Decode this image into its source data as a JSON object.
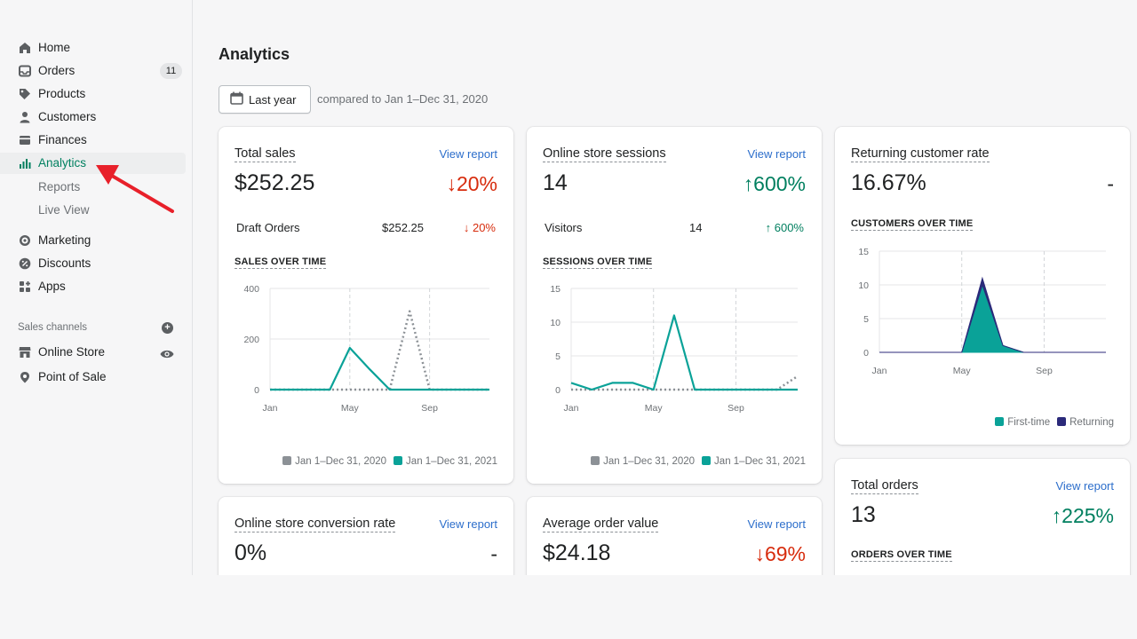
{
  "colors": {
    "accent": "#008060",
    "link": "#2c6ecb",
    "down": "#d72c0d",
    "up": "#007f5f",
    "teal": "#0aa298",
    "gray": "#8c9196",
    "navy": "#2b2a7a"
  },
  "sidebar": {
    "items": [
      {
        "label": "Home",
        "icon": "home-icon"
      },
      {
        "label": "Orders",
        "icon": "inbox-icon",
        "badge": "11"
      },
      {
        "label": "Products",
        "icon": "tag-icon"
      },
      {
        "label": "Customers",
        "icon": "person-icon"
      },
      {
        "label": "Finances",
        "icon": "wallet-icon"
      },
      {
        "label": "Analytics",
        "icon": "bar-chart-icon",
        "active": true
      },
      {
        "label": "Reports",
        "sub": true
      },
      {
        "label": "Live View",
        "sub": true
      },
      {
        "label": "Marketing",
        "icon": "target-icon"
      },
      {
        "label": "Discounts",
        "icon": "discount-icon"
      },
      {
        "label": "Apps",
        "icon": "apps-icon"
      }
    ],
    "section_label": "Sales channels",
    "channels": [
      {
        "label": "Online Store",
        "icon": "store-icon"
      },
      {
        "label": "Point of Sale",
        "icon": "pos-icon"
      }
    ]
  },
  "header": {
    "title": "Analytics",
    "date_button": "Last year",
    "compare_text": "compared to Jan 1–Dec 31, 2020"
  },
  "cards": {
    "total_sales": {
      "title": "Total sales",
      "link": "View report",
      "value": "$252.25",
      "change": "↓20%",
      "row_label": "Draft Orders",
      "row_value": "$252.25",
      "row_change": "↓ 20%",
      "chart_heading": "SALES OVER TIME",
      "legend": [
        "Jan 1–Dec 31, 2020",
        "Jan 1–Dec 31, 2021"
      ]
    },
    "sessions": {
      "title": "Online store sessions",
      "link": "View report",
      "value": "14",
      "change": "↑600%",
      "row_label": "Visitors",
      "row_value": "14",
      "row_change": "↑ 600%",
      "chart_heading": "SESSIONS OVER TIME",
      "legend": [
        "Jan 1–Dec 31, 2020",
        "Jan 1–Dec 31, 2021"
      ]
    },
    "returning": {
      "title": "Returning customer rate",
      "value": "16.67%",
      "change": "-",
      "chart_heading": "CUSTOMERS OVER TIME",
      "legend": [
        "First-time",
        "Returning"
      ]
    },
    "total_orders": {
      "title": "Total orders",
      "link": "View report",
      "value": "13",
      "change": "↑225%",
      "chart_heading": "ORDERS OVER TIME"
    },
    "conversion": {
      "title": "Online store conversion rate",
      "link": "View report",
      "value": "0%",
      "change": "-"
    },
    "aov": {
      "title": "Average order value",
      "link": "View report",
      "value": "$24.18",
      "change": "↓69%"
    }
  },
  "chart_data": [
    {
      "type": "line",
      "title": "SALES OVER TIME",
      "x_ticks": [
        "Jan",
        "May",
        "Sep"
      ],
      "y_ticks": [
        0,
        200,
        400
      ],
      "ylim": [
        0,
        400
      ],
      "x": [
        "Jan",
        "Feb",
        "Mar",
        "Apr",
        "May",
        "Jun",
        "Jul",
        "Aug",
        "Sep",
        "Oct",
        "Nov",
        "Dec"
      ],
      "series": [
        {
          "name": "Jan 1–Dec 31, 2020",
          "style": "dotted",
          "values": [
            0,
            0,
            0,
            0,
            0,
            0,
            0,
            310,
            0,
            0,
            0,
            0
          ]
        },
        {
          "name": "Jan 1–Dec 31, 2021",
          "style": "solid",
          "values": [
            0,
            0,
            0,
            0,
            165,
            80,
            0,
            0,
            0,
            0,
            0,
            0
          ]
        }
      ]
    },
    {
      "type": "line",
      "title": "SESSIONS OVER TIME",
      "x_ticks": [
        "Jan",
        "May",
        "Sep"
      ],
      "y_ticks": [
        0,
        5,
        10,
        15
      ],
      "ylim": [
        0,
        15
      ],
      "x": [
        "Jan",
        "Feb",
        "Mar",
        "Apr",
        "May",
        "Jun",
        "Jul",
        "Aug",
        "Sep",
        "Oct",
        "Nov",
        "Dec"
      ],
      "series": [
        {
          "name": "Jan 1–Dec 31, 2020",
          "style": "dotted",
          "values": [
            0,
            0,
            0,
            0,
            0,
            0,
            0,
            0,
            0,
            0,
            0,
            2
          ]
        },
        {
          "name": "Jan 1–Dec 31, 2021",
          "style": "solid",
          "values": [
            1,
            0,
            1,
            1,
            0,
            11,
            0,
            0,
            0,
            0,
            0,
            0
          ]
        }
      ]
    },
    {
      "type": "area",
      "title": "CUSTOMERS OVER TIME",
      "x_ticks": [
        "Jan",
        "May",
        "Sep"
      ],
      "y_ticks": [
        0,
        5,
        10,
        15
      ],
      "ylim": [
        0,
        15
      ],
      "x": [
        "Jan",
        "Feb",
        "Mar",
        "Apr",
        "May",
        "Jun",
        "Jul",
        "Aug",
        "Sep",
        "Oct",
        "Nov",
        "Dec"
      ],
      "series": [
        {
          "name": "First-time",
          "values": [
            0,
            0,
            0,
            0,
            0,
            10,
            1,
            0,
            0,
            0,
            0,
            0
          ]
        },
        {
          "name": "Returning",
          "values": [
            0,
            0,
            0,
            0,
            0,
            1,
            0,
            0,
            0,
            0,
            0,
            0
          ]
        }
      ]
    }
  ]
}
